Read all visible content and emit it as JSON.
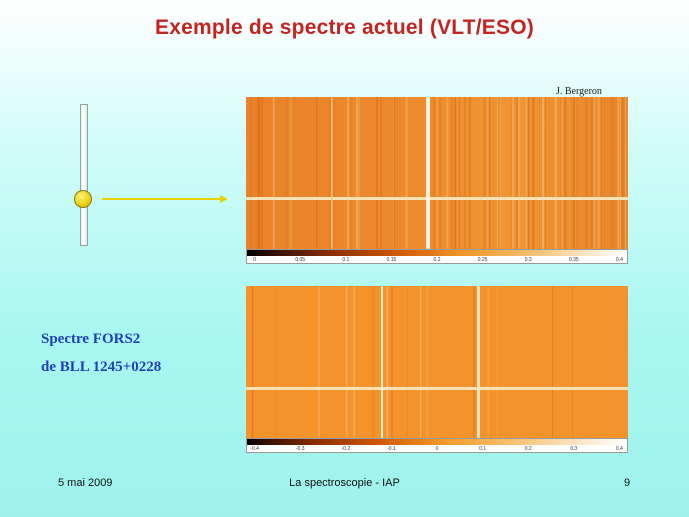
{
  "slide": {
    "title": "Exemple de spectre actuel (VLT/ESO)",
    "credit": "J. Bergeron",
    "label_line1": "Spectre FORS2",
    "label_line2": "de BLL 1245+0228",
    "footer_date": "5 mai 2009",
    "footer_center": "La spectroscopie - IAP",
    "footer_page": "9"
  },
  "colorbar_top": {
    "ticks": [
      "0",
      "0.05",
      "0.1",
      "0.15",
      "0.2",
      "0.25",
      "0.3",
      "0.35",
      "0.4"
    ]
  },
  "colorbar_bottom": {
    "ticks": [
      "-0.4",
      "-0.3",
      "-0.2",
      "-0.1",
      "0",
      "0.1",
      "0.2",
      "0.3",
      "0.4"
    ]
  },
  "colors": {
    "title": "#c4231f",
    "label": "#1f3fbf",
    "spectrum_top": "#ed8a2c",
    "spectrum_bottom": "#f4942a",
    "knob": "#e6c800"
  }
}
